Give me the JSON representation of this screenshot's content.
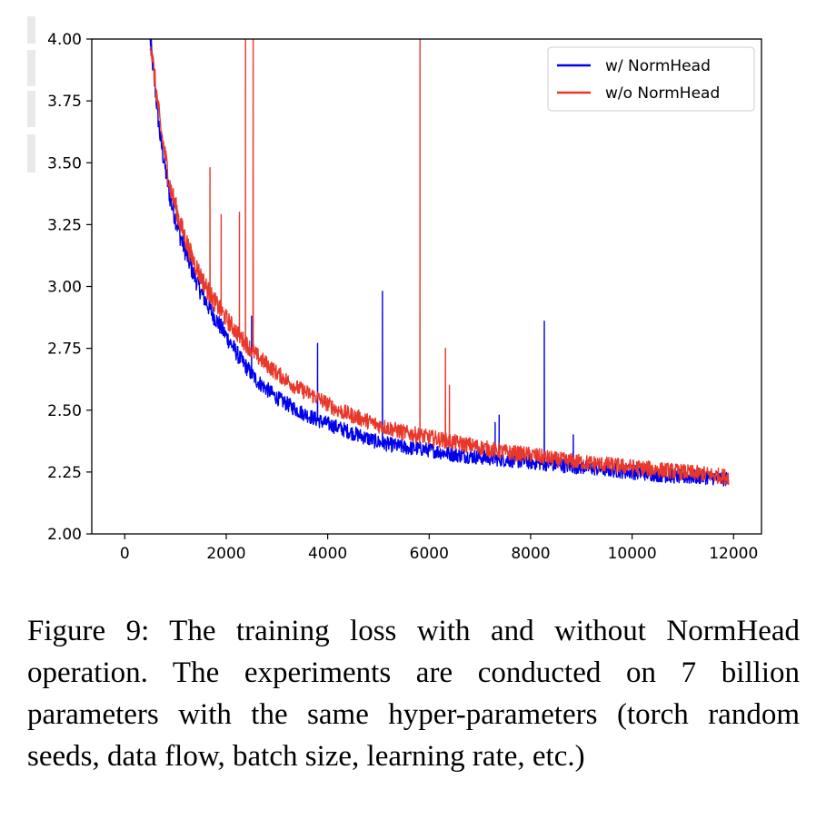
{
  "chart_data": {
    "type": "line",
    "title": "",
    "xlabel": "",
    "ylabel": "",
    "xlim": [
      -650,
      12550
    ],
    "ylim": [
      2.0,
      4.0
    ],
    "x_ticks": [
      0,
      2000,
      4000,
      6000,
      8000,
      10000,
      12000
    ],
    "y_ticks": [
      2.0,
      2.25,
      2.5,
      2.75,
      3.0,
      3.25,
      3.5,
      3.75,
      4.0
    ],
    "x_tick_labels": [
      "0",
      "2000",
      "4000",
      "6000",
      "8000",
      "10000",
      "12000"
    ],
    "y_tick_labels": [
      "2.00",
      "2.25",
      "2.50",
      "2.75",
      "3.00",
      "3.25",
      "3.50",
      "3.75",
      "4.00"
    ],
    "grid": false,
    "legend_position": "top-right",
    "series": [
      {
        "name": "w/ NormHead",
        "color": "#0000ee",
        "x": [
          500,
          700,
          900,
          1100,
          1300,
          1500,
          1700,
          2000,
          2300,
          2600,
          3000,
          3400,
          3800,
          4200,
          4600,
          5000,
          5500,
          6000,
          6500,
          7000,
          7500,
          8000,
          8500,
          9000,
          9500,
          10000,
          10500,
          11000,
          11500,
          11900
        ],
        "y": [
          4.0,
          3.6,
          3.35,
          3.2,
          3.08,
          2.98,
          2.9,
          2.8,
          2.7,
          2.62,
          2.55,
          2.5,
          2.46,
          2.43,
          2.4,
          2.37,
          2.35,
          2.34,
          2.32,
          2.31,
          2.3,
          2.29,
          2.28,
          2.27,
          2.26,
          2.25,
          2.24,
          2.23,
          2.23,
          2.22
        ],
        "noise": 0.03,
        "spikes": [
          [
            2500,
            2.88
          ],
          [
            3800,
            2.77
          ],
          [
            5080,
            2.98
          ],
          [
            7300,
            2.45
          ],
          [
            7380,
            2.48
          ],
          [
            8270,
            2.86
          ],
          [
            8840,
            2.4
          ]
        ]
      },
      {
        "name": "w/o NormHead",
        "color": "#e8382b",
        "x": [
          500,
          700,
          900,
          1100,
          1300,
          1500,
          1700,
          2000,
          2300,
          2600,
          3000,
          3400,
          3800,
          4200,
          4600,
          5000,
          5500,
          6000,
          6500,
          7000,
          7500,
          8000,
          8500,
          9000,
          9500,
          10000,
          10500,
          11000,
          11500,
          11900
        ],
        "y": [
          4.0,
          3.65,
          3.4,
          3.25,
          3.13,
          3.04,
          2.96,
          2.87,
          2.79,
          2.72,
          2.65,
          2.59,
          2.55,
          2.5,
          2.47,
          2.44,
          2.41,
          2.39,
          2.37,
          2.35,
          2.33,
          2.32,
          2.3,
          2.29,
          2.28,
          2.27,
          2.26,
          2.25,
          2.24,
          2.23
        ],
        "noise": 0.032,
        "spikes": [
          [
            1680,
            3.48
          ],
          [
            1900,
            3.29
          ],
          [
            2260,
            3.3
          ],
          [
            2380,
            4.0
          ],
          [
            2530,
            4.0
          ],
          [
            5820,
            4.0
          ],
          [
            6320,
            2.75
          ],
          [
            6400,
            2.6
          ]
        ]
      }
    ]
  },
  "caption": "Figure 9: The training loss with and without NormHead operation. The experiments are conducted on 7 billion parameters with the same hyper-parameters (torch random seeds, data flow, batch size, learning rate, etc.)"
}
